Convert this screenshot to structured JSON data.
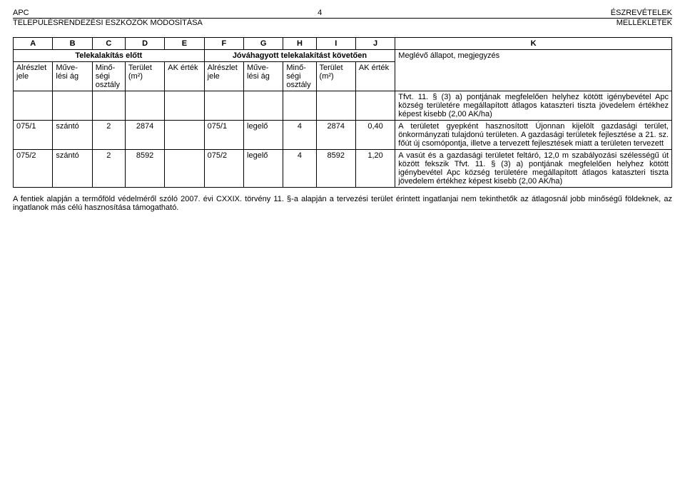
{
  "header": {
    "top_left": "APC",
    "top_center": "4",
    "top_right": "ÉSZREVÉTELEK",
    "bottom_left": "TELEPÜLÉSRENDEZÉSI ESZKÖZÖK MÓDOSÍTÁSA",
    "bottom_right": "MELLÉKLETEK"
  },
  "table": {
    "letters": [
      "A",
      "B",
      "C",
      "D",
      "E",
      "F",
      "G",
      "H",
      "I",
      "J",
      "K"
    ],
    "group_before": "Telekalakítás előtt",
    "group_after": "Jóváhagyott telekalakítást követően",
    "group_k": "Meglévő állapot, megjegyzés",
    "sub": {
      "a": "Alrészlet jele",
      "b": "Műve-lési ág",
      "c": "Minő-ségi osztály",
      "d": "Terület (m²)",
      "e": "AK érték",
      "f": "Alrészlet jele",
      "g": "Műve-lési ág",
      "h": "Minő-ségi osztály",
      "i": "Terület (m²)",
      "j": "AK érték"
    },
    "row_pre_k": "Tfvt. 11. § (3) a) pontjának megfelelően helyhez kötött igénybevétel\nApc község területére megállapított átlagos kataszteri tiszta jövedelem értékhez képest kisebb (2,00 AK/ha)",
    "row1": {
      "a": "075/1",
      "b": "szántó",
      "c": "2",
      "d": "2874",
      "e": "",
      "f": "075/1",
      "g": "legelő",
      "h": "4",
      "i": "2874",
      "j": "0,40",
      "k": "A területet gyepként hasznosított\nÚjonnan kijelölt gazdasági terület, önkormányzati tulajdonú területen. A gazdasági területek fejlesztése a 21. sz. főút új csomópontja, illetve a tervezett fejlesztések miatt a területen tervezett"
    },
    "row2": {
      "a": "075/2",
      "b": "szántó",
      "c": "2",
      "d": "8592",
      "e": "",
      "f": "075/2",
      "g": "legelő",
      "h": "4",
      "i": "8592",
      "j": "1,20",
      "k": "A vasút és a gazdasági területet feltáró, 12,0 m szabályozási szélességű út között fekszik\nTfvt. 11. § (3) a) pontjának megfelelően helyhez kötött igénybevétel\nApc község területére megállapított átlagos kataszteri tiszta jövedelem értékhez képest kisebb (2,00 AK/ha)"
    }
  },
  "footnote": "A fentiek alapján a termőföld védelméről szóló 2007. évi CXXIX. törvény 11. §-a alapján a tervezési terület érintett ingatlanjai nem tekinthetők az átlagosnál jobb minőségű földeknek, az ingatlanok más célú hasznosítása támogatható."
}
